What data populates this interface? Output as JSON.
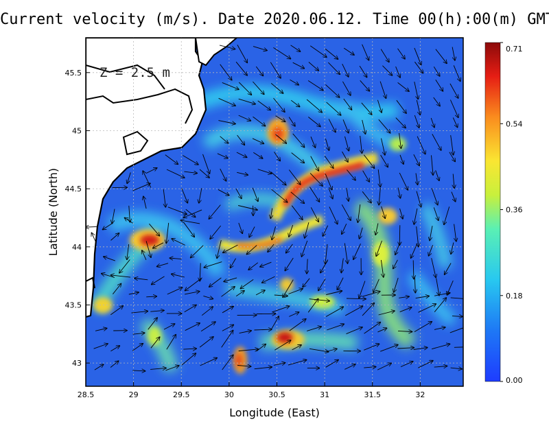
{
  "title": "Current velocity (m/s). Date 2020.06.12. Time 00(h):00(m) GMT",
  "depth_label": "Z = 2.5 m",
  "x_axis": {
    "label": "Longitude (East)",
    "ticks": [
      "28.5",
      "29",
      "29.5",
      "30",
      "30.5",
      "31",
      "31.5",
      "32"
    ],
    "range": [
      28.5,
      32.45
    ]
  },
  "y_axis": {
    "label": "Latitude (North)",
    "ticks": [
      "43",
      "43.5",
      "44",
      "44.5",
      "45",
      "45.5"
    ],
    "range": [
      42.8,
      45.8
    ]
  },
  "colorbar": {
    "ticks": [
      "0.71",
      "0.54",
      "0.36",
      "0.18",
      "0.00"
    ],
    "range": [
      0,
      0.71
    ],
    "colors": [
      "#1e5af0",
      "#1e8cf5",
      "#28d2f0",
      "#a0f050",
      "#fae632",
      "#fa8c1e",
      "#f01e14",
      "#8c0a0a"
    ]
  },
  "colors": {
    "sea_background": "#2a63e6",
    "land": "#ffffff",
    "coastline": "#000000",
    "grid": "#b8b8b8"
  }
}
